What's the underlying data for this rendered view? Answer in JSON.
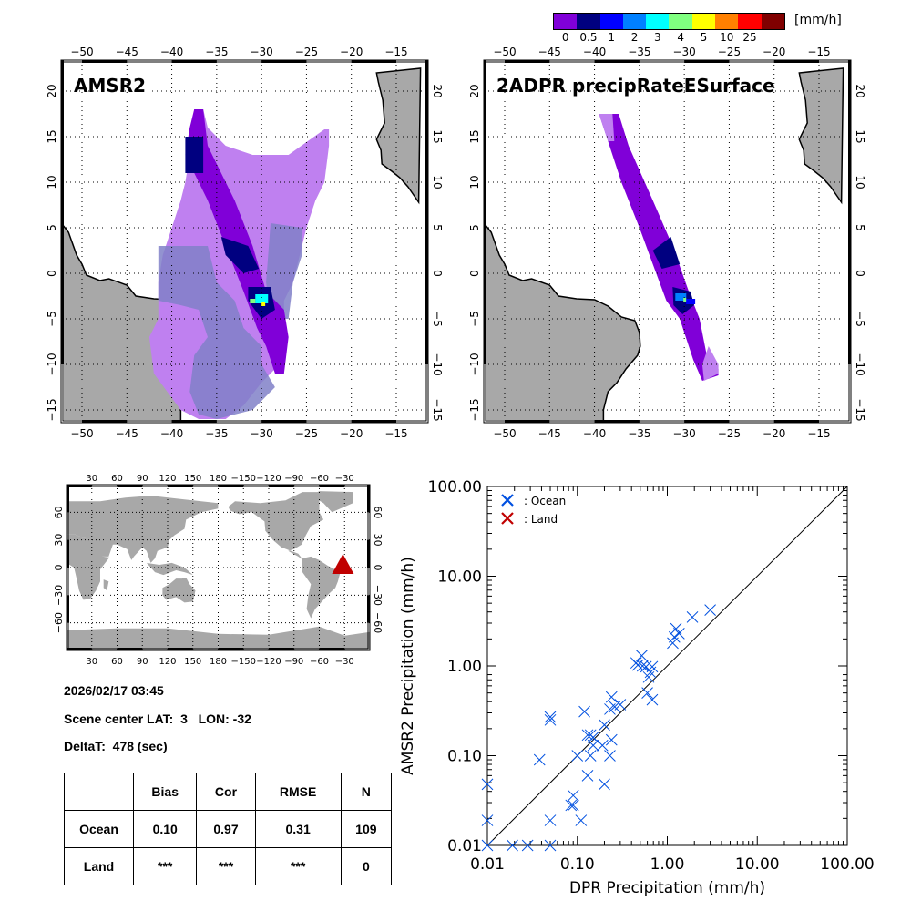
{
  "colorbar": {
    "unit_label": "[mm/h]",
    "colors": [
      "#8000d8",
      "#000080",
      "#0000ff",
      "#0080ff",
      "#00ffff",
      "#80ff80",
      "#ffff00",
      "#ff8000",
      "#ff0000",
      "#800000"
    ],
    "tick_labels": [
      "0",
      "0.5",
      "1",
      "2",
      "3",
      "4",
      "5",
      "10",
      "25"
    ]
  },
  "maps": [
    {
      "title": "AMSR2",
      "lon_labels": [
        "-50",
        "-45",
        "-40",
        "-35",
        "-30",
        "-25",
        "-20",
        "-15"
      ],
      "lat_labels": [
        "20",
        "15",
        "10",
        "5",
        "0",
        "-5",
        "-10",
        "-15"
      ]
    },
    {
      "title": "2ADPR precipRateESurface",
      "lon_labels": [
        "-50",
        "-45",
        "-40",
        "-35",
        "-30",
        "-25",
        "-20",
        "-15"
      ],
      "lat_labels": [
        "20",
        "15",
        "10",
        "5",
        "0",
        "-5",
        "-10",
        "-15"
      ]
    }
  ],
  "world_map": {
    "lon_labels": [
      "30",
      "60",
      "90",
      "120",
      "150",
      "180",
      "-150",
      "-120",
      "-90",
      "-60",
      "-30"
    ],
    "lat_labels": [
      "60",
      "30",
      "0",
      "-30",
      "-60"
    ],
    "marker": {
      "icon": "triangle-marker-icon",
      "lat": 3,
      "lon": -32,
      "color": "#c00000"
    }
  },
  "info": {
    "datetime": "2026/02/17 03:45",
    "scene_center": "Scene center LAT:  3   LON: -32",
    "delta_t": "DeltaT:  478 (sec)"
  },
  "stats_table": {
    "headers": [
      "",
      "Bias",
      "Cor",
      "RMSE",
      "N"
    ],
    "rows": [
      [
        "Ocean",
        "0.10",
        "0.97",
        "0.31",
        "109"
      ],
      [
        "Land",
        "***",
        "***",
        "***",
        "0"
      ]
    ]
  },
  "chart_data": {
    "type": "scatter",
    "title": "",
    "xlabel": "DPR Precipitation (mm/h)",
    "ylabel": "AMSR2 Precipitation (mm/h)",
    "xscale": "log",
    "yscale": "log",
    "xlim": [
      0.01,
      100
    ],
    "ylim": [
      0.01,
      100
    ],
    "x_tick_labels": [
      "0.01",
      "0.10",
      "1.00",
      "10.00",
      "100.00"
    ],
    "y_tick_labels": [
      "0.01",
      "0.10",
      "1.00",
      "10.00",
      "100.00"
    ],
    "reference_line": "1:1",
    "legend": {
      "placement": "top-left",
      "entries": [
        {
          "label": ": Ocean",
          "color": "#0050e0"
        },
        {
          "label": ": Land",
          "color": "#c00000"
        }
      ]
    },
    "series": [
      {
        "name": "Ocean",
        "color": "#0050e0",
        "points": [
          [
            0.01,
            0.01
          ],
          [
            0.01,
            0.019
          ],
          [
            0.01,
            0.048
          ],
          [
            0.019,
            0.01
          ],
          [
            0.028,
            0.01
          ],
          [
            0.05,
            0.01
          ],
          [
            0.038,
            0.09
          ],
          [
            0.05,
            0.019
          ],
          [
            0.05,
            0.25
          ],
          [
            0.05,
            0.27
          ],
          [
            0.085,
            0.028
          ],
          [
            0.09,
            0.028
          ],
          [
            0.09,
            0.036
          ],
          [
            0.1,
            0.1
          ],
          [
            0.11,
            0.019
          ],
          [
            0.12,
            0.31
          ],
          [
            0.13,
            0.06
          ],
          [
            0.13,
            0.17
          ],
          [
            0.14,
            0.17
          ],
          [
            0.14,
            0.1
          ],
          [
            0.15,
            0.16
          ],
          [
            0.15,
            0.13
          ],
          [
            0.19,
            0.13
          ],
          [
            0.2,
            0.22
          ],
          [
            0.2,
            0.048
          ],
          [
            0.23,
            0.1
          ],
          [
            0.23,
            0.33
          ],
          [
            0.24,
            0.15
          ],
          [
            0.24,
            0.45
          ],
          [
            0.26,
            0.35
          ],
          [
            0.3,
            0.37
          ],
          [
            0.45,
            1.08
          ],
          [
            0.47,
            1.02
          ],
          [
            0.52,
            1.3
          ],
          [
            0.53,
            1.0
          ],
          [
            0.58,
            0.98
          ],
          [
            0.6,
            0.5
          ],
          [
            0.62,
            0.75
          ],
          [
            0.65,
            0.85
          ],
          [
            0.68,
            0.98
          ],
          [
            0.68,
            0.42
          ],
          [
            1.15,
            1.8
          ],
          [
            1.2,
            2.1
          ],
          [
            1.25,
            2.6
          ],
          [
            1.35,
            2.3
          ],
          [
            1.9,
            3.5
          ],
          [
            3.0,
            4.2
          ]
        ]
      },
      {
        "name": "Land",
        "color": "#c00000",
        "points": []
      }
    ]
  }
}
